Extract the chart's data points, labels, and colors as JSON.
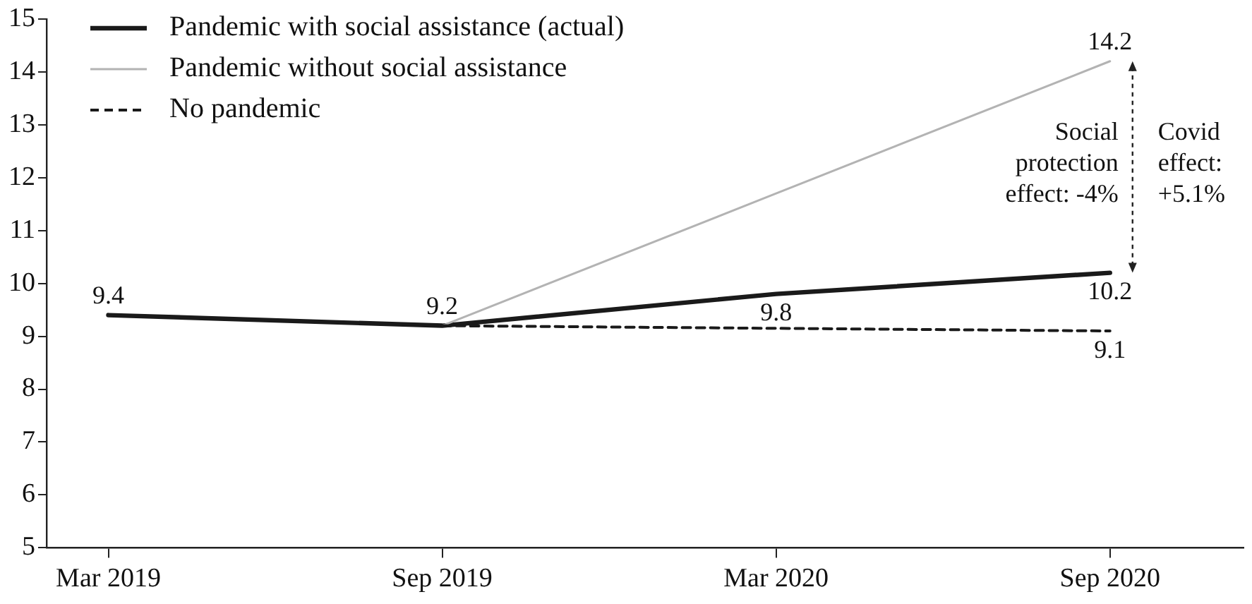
{
  "chart_data": {
    "type": "line",
    "categories": [
      "Mar 2019",
      "Sep 2019",
      "Mar 2020",
      "Sep 2020"
    ],
    "series": [
      {
        "name": "Pandemic with social assistance (actual)",
        "color": "#1a1a1a",
        "line_style": "solid",
        "values": [
          9.4,
          9.2,
          9.8,
          10.2
        ],
        "value_labels": [
          "9.4",
          "9.2",
          "9.8",
          "10.2"
        ]
      },
      {
        "name": "Pandemic without social assistance",
        "color": "#b3b3b3",
        "line_style": "solid",
        "values": [
          null,
          9.2,
          11.7,
          14.2
        ],
        "value_labels": [
          null,
          null,
          null,
          "14.2"
        ]
      },
      {
        "name": "No pandemic",
        "color": "#1a1a1a",
        "line_style": "dashed",
        "values": [
          null,
          9.2,
          9.15,
          9.1
        ],
        "value_labels": [
          null,
          null,
          null,
          "9.1"
        ]
      }
    ],
    "ylim": [
      5,
      15
    ],
    "yticks": [
      5,
      6,
      7,
      8,
      9,
      10,
      11,
      12,
      13,
      14,
      15
    ],
    "grid": false,
    "legend": "top left",
    "marker": "none",
    "annotations": [
      "Social protection effect: -4%",
      "Covid effect: +5.1%"
    ]
  }
}
